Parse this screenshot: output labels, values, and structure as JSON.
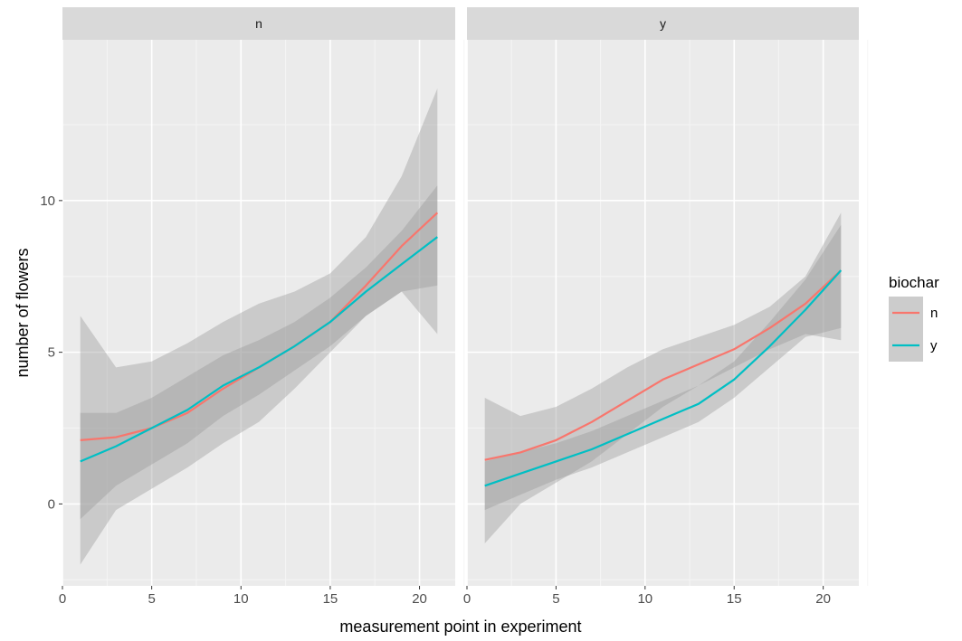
{
  "chart_data": {
    "type": "line",
    "title": "",
    "xlabel": "measurement point in experiment",
    "ylabel": "number of flowers",
    "xlim": [
      0,
      22
    ],
    "ylim": [
      -2.7,
      15.3
    ],
    "x_ticks": [
      0,
      5,
      10,
      15,
      20
    ],
    "y_ticks": [
      0,
      5,
      10
    ],
    "grid": true,
    "facet_labels": [
      "n",
      "y"
    ],
    "legend": {
      "title": "biochar",
      "position": "right",
      "entries": [
        {
          "label": "n",
          "color": "#F8766D"
        },
        {
          "label": "y",
          "color": "#00BFC4"
        }
      ]
    },
    "panels": [
      {
        "facet": "n",
        "series": [
          {
            "legend_key": "n",
            "color": "#F8766D",
            "x": [
              1,
              3,
              5,
              7,
              9,
              11,
              13,
              15,
              17,
              19,
              21
            ],
            "y": [
              2.1,
              2.2,
              2.5,
              3.0,
              3.8,
              4.5,
              5.2,
              6.0,
              7.2,
              8.5,
              9.6
            ],
            "lower": [
              -2.0,
              -0.2,
              0.5,
              1.2,
              2.0,
              2.7,
              3.8,
              5.0,
              6.2,
              7.0,
              5.6
            ],
            "upper": [
              6.2,
              4.5,
              4.7,
              5.3,
              6.0,
              6.6,
              7.0,
              7.6,
              8.8,
              10.8,
              13.7
            ]
          },
          {
            "legend_key": "y",
            "color": "#00BFC4",
            "x": [
              1,
              3,
              5,
              7,
              9,
              11,
              13,
              15,
              17,
              19,
              21
            ],
            "y": [
              1.4,
              1.9,
              2.5,
              3.1,
              3.9,
              4.5,
              5.2,
              6.0,
              7.0,
              7.9,
              8.8
            ],
            "lower": [
              -0.5,
              0.6,
              1.3,
              2.0,
              2.9,
              3.6,
              4.4,
              5.2,
              6.2,
              7.0,
              7.2
            ],
            "upper": [
              3.0,
              3.0,
              3.5,
              4.2,
              4.9,
              5.4,
              6.0,
              6.8,
              7.8,
              9.0,
              10.5
            ]
          }
        ]
      },
      {
        "facet": "y",
        "series": [
          {
            "legend_key": "n",
            "color": "#F8766D",
            "x": [
              1,
              3,
              5,
              7,
              9,
              11,
              13,
              15,
              17,
              19,
              21
            ],
            "y": [
              1.45,
              1.7,
              2.1,
              2.7,
              3.4,
              4.1,
              4.6,
              5.1,
              5.8,
              6.6,
              7.7
            ],
            "lower": [
              -1.3,
              0.0,
              0.7,
              1.4,
              2.3,
              3.2,
              3.9,
              4.5,
              5.1,
              5.6,
              5.4
            ],
            "upper": [
              3.5,
              2.9,
              3.2,
              3.8,
              4.5,
              5.1,
              5.5,
              5.9,
              6.5,
              7.5,
              9.6
            ]
          },
          {
            "legend_key": "y",
            "color": "#00BFC4",
            "x": [
              1,
              3,
              5,
              7,
              9,
              11,
              13,
              15,
              17,
              19,
              21
            ],
            "y": [
              0.6,
              1.0,
              1.4,
              1.8,
              2.3,
              2.8,
              3.3,
              4.1,
              5.2,
              6.4,
              7.7
            ],
            "lower": [
              -0.2,
              0.3,
              0.8,
              1.2,
              1.7,
              2.2,
              2.7,
              3.5,
              4.5,
              5.5,
              5.8
            ],
            "upper": [
              1.4,
              1.7,
              2.0,
              2.4,
              2.9,
              3.4,
              3.9,
              4.7,
              6.0,
              7.4,
              9.2
            ]
          }
        ]
      }
    ]
  }
}
